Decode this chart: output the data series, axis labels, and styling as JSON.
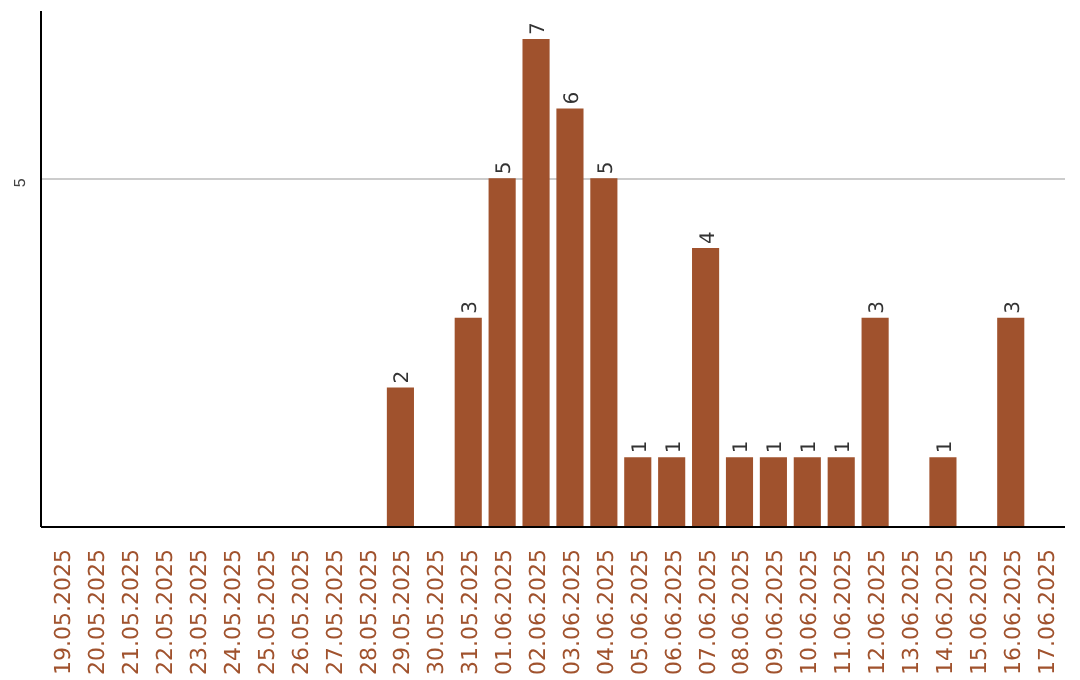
{
  "chart_data": {
    "type": "bar",
    "categories": [
      "19.05.2025",
      "20.05.2025",
      "21.05.2025",
      "22.05.2025",
      "23.05.2025",
      "24.05.2025",
      "25.05.2025",
      "26.05.2025",
      "27.05.2025",
      "28.05.2025",
      "29.05.2025",
      "30.05.2025",
      "31.05.2025",
      "01.06.2025",
      "02.06.2025",
      "03.06.2025",
      "04.06.2025",
      "05.06.2025",
      "06.06.2025",
      "07.06.2025",
      "08.06.2025",
      "09.06.2025",
      "10.06.2025",
      "11.06.2025",
      "12.06.2025",
      "13.06.2025",
      "14.06.2025",
      "15.06.2025",
      "16.06.2025",
      "17.06.2025"
    ],
    "values": [
      0,
      0,
      0,
      0,
      0,
      0,
      0,
      0,
      0,
      0,
      2,
      0,
      3,
      5,
      7,
      6,
      5,
      1,
      1,
      4,
      1,
      1,
      1,
      1,
      3,
      0,
      1,
      0,
      3,
      0
    ],
    "value_labels": [
      null,
      null,
      null,
      null,
      null,
      null,
      null,
      null,
      null,
      null,
      "2",
      null,
      "3",
      "5",
      "7",
      "6",
      "5",
      "1",
      "1",
      "4",
      "1",
      "1",
      "1",
      "1",
      "3",
      null,
      "1",
      null,
      "3",
      null
    ],
    "color": "#a0522d",
    "ylim": [
      0,
      7.4
    ],
    "yticks": [
      5
    ],
    "grid": "y"
  }
}
